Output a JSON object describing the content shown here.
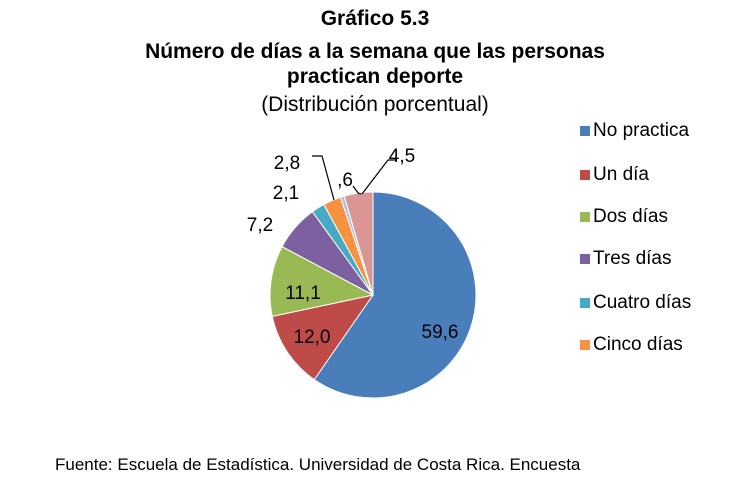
{
  "title_lines": [
    "Gráfico 5.3",
    "Número de días a la semana que las personas",
    "practican deporte"
  ],
  "subtitle": "(Distribución porcentual)",
  "source": "Fuente: Escuela de Estadística. Universidad de Costa Rica. Encuesta",
  "chart_data": {
    "type": "pie",
    "title": "Número de días a la semana que las personas practican deporte",
    "subtitle": "(Distribución porcentual)",
    "legend_position": "right",
    "slices": [
      {
        "name": "No practica",
        "label": "59,6",
        "value": 59.6,
        "color": "#4a7ebb"
      },
      {
        "name": "Un día",
        "label": "12,0",
        "value": 12.0,
        "color": "#be4b48"
      },
      {
        "name": "Dos días",
        "label": "11,1",
        "value": 11.1,
        "color": "#98b954"
      },
      {
        "name": "Tres días",
        "label": "7,2",
        "value": 7.2,
        "color": "#7d60a0"
      },
      {
        "name": "Cuatro días",
        "label": "2,1",
        "value": 2.1,
        "color": "#46aac5"
      },
      {
        "name": "Cinco días",
        "label": "2,8",
        "value": 2.8,
        "color": "#f69240"
      },
      {
        "name": "",
        "label": ",6",
        "value": 0.6,
        "color": "#a9c3e3"
      },
      {
        "name": "",
        "label": "4,5",
        "value": 4.5,
        "color": "#d99694"
      }
    ],
    "legend": [
      "No practica",
      "Un día",
      "Dos días",
      "Tres días",
      "Cuatro días",
      "Cinco días"
    ]
  }
}
